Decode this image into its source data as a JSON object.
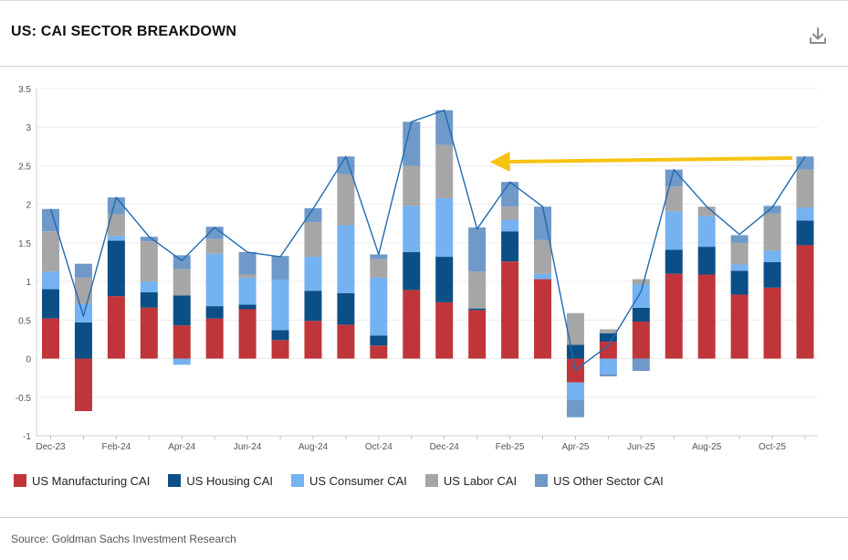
{
  "header": {
    "title": "US: CAI SECTOR BREAKDOWN",
    "download_icon": "download-icon"
  },
  "source": "Source: Goldman Sachs Investment Research",
  "colors": {
    "manufacturing": "#c0353a",
    "housing": "#0b4f86",
    "consumer": "#74b2f2",
    "labor": "#a6a6a6",
    "other": "#6f99c9",
    "total_line": "#1f6bb2",
    "arrow": "#f7c313"
  },
  "chart_data": {
    "type": "bar",
    "stacked": true,
    "title": "US: CAI SECTOR BREAKDOWN",
    "xlabel": "",
    "ylabel": "",
    "ylim": [
      -1,
      3.5
    ],
    "yticks": [
      -1,
      -0.5,
      0,
      0.5,
      1,
      1.5,
      2,
      2.5,
      3,
      3.5
    ],
    "ytick_labels": [
      "-1",
      "-0.5",
      "0",
      "0.5",
      "1",
      "1.5",
      "2",
      "2.5",
      "3",
      "3.5"
    ],
    "xtick_labels": [
      {
        "index": 0,
        "label": "Dec-23"
      },
      {
        "index": 2,
        "label": "Feb-24"
      },
      {
        "index": 4,
        "label": "Apr-24"
      },
      {
        "index": 6,
        "label": "Jun-24"
      },
      {
        "index": 8,
        "label": "Aug-24"
      },
      {
        "index": 10,
        "label": "Oct-24"
      },
      {
        "index": 12,
        "label": "Dec-24"
      },
      {
        "index": 14,
        "label": "Feb-25"
      },
      {
        "index": 16,
        "label": "Apr-25"
      },
      {
        "index": 18,
        "label": "Jun-25"
      },
      {
        "index": 20,
        "label": "Aug-25"
      },
      {
        "index": 22,
        "label": "Oct-25"
      }
    ],
    "categories": [
      "Dec-23",
      "Jan-24",
      "Feb-24",
      "Mar-24",
      "Apr-24",
      "May-24",
      "Jun-24",
      "Jul-24",
      "Aug-24",
      "Sep-24",
      "Oct-24",
      "Nov-24",
      "Dec-24",
      "Jan-25",
      "Feb-25",
      "Mar-25",
      "Apr-25",
      "May-25",
      "Jun-25",
      "Jul-25",
      "Aug-25",
      "Sep-25",
      "Oct-25",
      "Nov-25"
    ],
    "series": [
      {
        "name": "US Manufacturing CAI",
        "key": "manufacturing",
        "values": [
          0.52,
          -0.68,
          0.81,
          0.66,
          0.43,
          0.52,
          0.64,
          0.24,
          0.49,
          0.44,
          0.17,
          0.89,
          0.73,
          0.63,
          1.26,
          1.03,
          -0.31,
          0.22,
          0.48,
          1.1,
          1.09,
          0.83,
          0.92,
          1.47
        ]
      },
      {
        "name": "US Housing CAI",
        "key": "housing",
        "values": [
          0.38,
          0.47,
          0.72,
          0.2,
          0.39,
          0.16,
          0.06,
          0.13,
          0.39,
          0.41,
          0.13,
          0.49,
          0.59,
          0.02,
          0.39,
          0.0,
          0.18,
          0.11,
          0.18,
          0.31,
          0.36,
          0.31,
          0.33,
          0.32
        ]
      },
      {
        "name": "US Consumer CAI",
        "key": "consumer",
        "values": [
          0.23,
          0.24,
          0.06,
          0.14,
          -0.08,
          0.68,
          0.35,
          0.65,
          0.44,
          0.88,
          0.75,
          0.6,
          0.76,
          0.0,
          0.15,
          0.07,
          -0.22,
          -0.2,
          0.3,
          0.5,
          0.4,
          0.08,
          0.15,
          0.17
        ]
      },
      {
        "name": "US Labor CAI",
        "key": "labor",
        "values": [
          0.52,
          0.34,
          0.28,
          0.52,
          0.34,
          0.19,
          0.04,
          0.0,
          0.45,
          0.66,
          0.24,
          0.52,
          0.69,
          0.48,
          0.17,
          0.44,
          0.41,
          0.05,
          0.07,
          0.32,
          0.12,
          0.28,
          0.48,
          0.49
        ]
      },
      {
        "name": "US Other Sector CAI",
        "key": "other",
        "values": [
          0.29,
          0.18,
          0.22,
          0.06,
          0.18,
          0.16,
          0.29,
          0.31,
          0.18,
          0.23,
          0.06,
          0.57,
          0.45,
          0.57,
          0.32,
          0.43,
          -0.23,
          -0.03,
          -0.16,
          0.22,
          0.0,
          0.1,
          0.1,
          0.17
        ]
      }
    ],
    "total_line": {
      "name": "Total CAI",
      "values": [
        1.94,
        0.55,
        2.09,
        1.58,
        1.27,
        1.7,
        1.38,
        1.32,
        1.94,
        2.62,
        1.35,
        3.07,
        3.22,
        1.68,
        2.29,
        1.97,
        -0.15,
        0.17,
        0.87,
        2.45,
        1.97,
        1.61,
        1.96,
        2.62
      ]
    },
    "annotation": {
      "type": "arrow",
      "from": {
        "index": 23,
        "value": 2.6
      },
      "to": {
        "index": 13,
        "value": 2.55
      }
    },
    "legend_position": "bottom-left",
    "grid": true
  }
}
